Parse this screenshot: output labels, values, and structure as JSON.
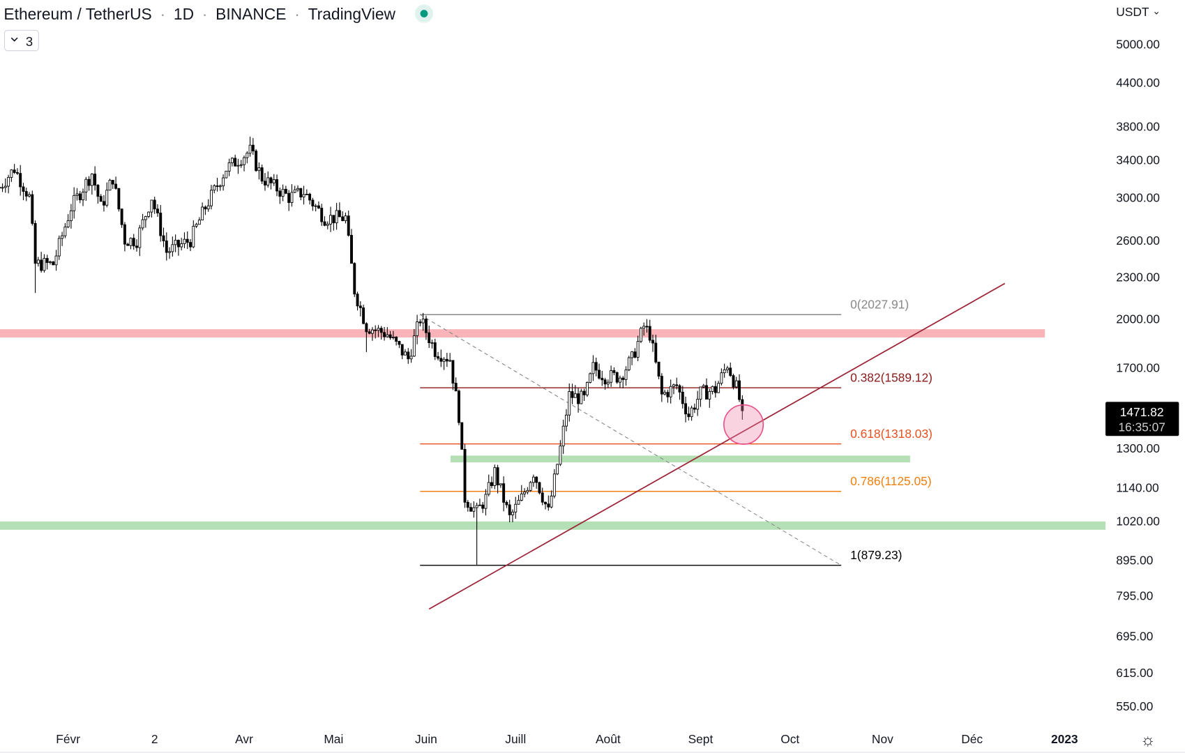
{
  "header": {
    "title": "Ethereum / TetherUS",
    "sep": "·",
    "interval": "1D",
    "exchange": "BINANCE",
    "source": "TradingView",
    "status_color": "#089981",
    "indicators_count": "3"
  },
  "axis": {
    "currency": "USDT",
    "currency_chevron": "⌄",
    "settings_icon": "☼"
  },
  "chart_data": {
    "type": "candlestick",
    "title": "Ethereum / TetherUS · 1D · BINANCE",
    "scale": "log",
    "ylim": [
      550,
      5000
    ],
    "y_ticks": [
      "5000.00",
      "4400.00",
      "3800.00",
      "3400.00",
      "3000.00",
      "2600.00",
      "2300.00",
      "2000.00",
      "1700.00",
      "1300.00",
      "1140.00",
      "1020.00",
      "895.00",
      "795.00",
      "695.00",
      "615.00",
      "550.00"
    ],
    "y_tick_values": [
      5000,
      4400,
      3800,
      3400,
      3000,
      2600,
      2300,
      2000,
      1700,
      1300,
      1140,
      1020,
      895,
      795,
      695,
      615,
      550
    ],
    "x_ticks": [
      {
        "label": "Févr",
        "day": 32
      },
      {
        "label": "2",
        "day": 61
      },
      {
        "label": "Avr",
        "day": 91
      },
      {
        "label": "Mai",
        "day": 121
      },
      {
        "label": "Juin",
        "day": 152
      },
      {
        "label": "Juill",
        "day": 182
      },
      {
        "label": "Août",
        "day": 213
      },
      {
        "label": "Sept",
        "day": 244
      },
      {
        "label": "Oct",
        "day": 274
      },
      {
        "label": "Nov",
        "day": 305
      },
      {
        "label": "Déc",
        "day": 335
      },
      {
        "label": "2023",
        "day": 366,
        "bold": true
      }
    ],
    "close_path_day_price": [
      [
        9,
        3100
      ],
      [
        14,
        3300
      ],
      [
        19,
        3000
      ],
      [
        21,
        2400
      ],
      [
        27,
        2400
      ],
      [
        33,
        2900
      ],
      [
        40,
        3250
      ],
      [
        43,
        2900
      ],
      [
        47,
        3200
      ],
      [
        51,
        2600
      ],
      [
        55,
        2600
      ],
      [
        60,
        3000
      ],
      [
        65,
        2500
      ],
      [
        73,
        2600
      ],
      [
        78,
        2900
      ],
      [
        85,
        3300
      ],
      [
        93,
        3500
      ],
      [
        97,
        3200
      ],
      [
        106,
        3000
      ],
      [
        111,
        3050
      ],
      [
        118,
        2800
      ],
      [
        125,
        2800
      ],
      [
        128,
        2200
      ],
      [
        132,
        1950
      ],
      [
        139,
        1900
      ],
      [
        146,
        1750
      ],
      [
        150,
        2000
      ],
      [
        155,
        1800
      ],
      [
        160,
        1750
      ],
      [
        163,
        1450
      ],
      [
        165,
        1100
      ],
      [
        169,
        1050
      ],
      [
        172,
        1100
      ],
      [
        175,
        1200
      ],
      [
        180,
        1030
      ],
      [
        184,
        1100
      ],
      [
        188,
        1200
      ],
      [
        193,
        1050
      ],
      [
        197,
        1300
      ],
      [
        200,
        1550
      ],
      [
        205,
        1530
      ],
      [
        208,
        1700
      ],
      [
        212,
        1650
      ],
      [
        217,
        1650
      ],
      [
        221,
        1750
      ],
      [
        225,
        1950
      ],
      [
        227,
        1900
      ],
      [
        231,
        1550
      ],
      [
        236,
        1600
      ],
      [
        240,
        1450
      ],
      [
        244,
        1560
      ],
      [
        249,
        1580
      ],
      [
        253,
        1720
      ],
      [
        256,
        1590
      ],
      [
        258,
        1471.82
      ]
    ],
    "last_price": "1471.82",
    "countdown": "16:35:07",
    "fibonacci": {
      "from_day": 152,
      "to_day": 290,
      "levels": [
        {
          "label": "0(2027.91)",
          "price": 2027.91,
          "color": "#888888"
        },
        {
          "label": "0.382(1589.12)",
          "price": 1589.12,
          "color": "#8b1a1a"
        },
        {
          "label": "0.618(1318.03)",
          "price": 1318.03,
          "color": "#e8501e"
        },
        {
          "label": "0.786(1125.05)",
          "price": 1125.05,
          "color": "#f08010"
        },
        {
          "label": "1(879.23)",
          "price": 879.23,
          "color": "#000000"
        }
      ]
    },
    "zones": [
      {
        "type": "resistance",
        "price_low": 1900,
        "price_high": 1950,
        "color": "#f8b4b8"
      },
      {
        "type": "support",
        "price_low": 1235,
        "price_high": 1260,
        "color": "#b5dfb5"
      },
      {
        "type": "support",
        "price_low": 1000,
        "price_high": 1025,
        "color": "#b5dfb5"
      }
    ],
    "trendline": {
      "start": [
        153,
        760
      ],
      "end": [
        346,
        2250
      ],
      "color": "#9b2335"
    }
  }
}
